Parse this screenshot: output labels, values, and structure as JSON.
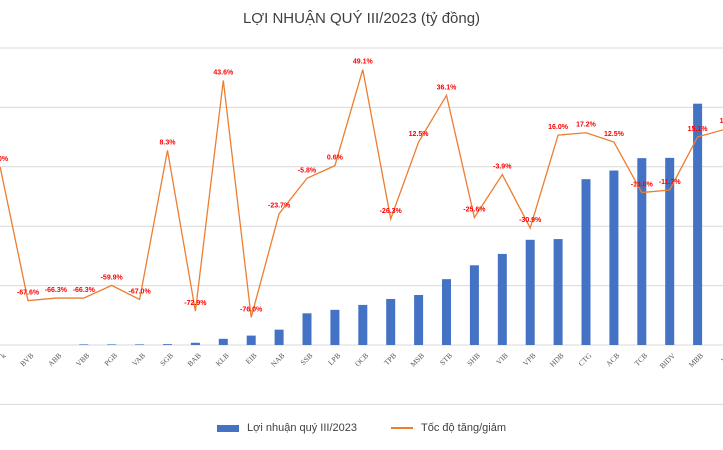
{
  "chart_data": {
    "type": "bar",
    "title": "LỢI NHUẬN QUÝ III/2023 (tỷ đồng)",
    "categories": [
      "BVB",
      "ABB",
      "VBB",
      "PGB",
      "VAB",
      "SGB",
      "BAB",
      "KLB",
      "EIB",
      "NAB",
      "SSB",
      "LPB",
      "OCB",
      "TPB",
      "MSB",
      "STB",
      "SHB",
      "VIB",
      "VPB",
      "HDB",
      "CTG",
      "ACB",
      "TCB",
      "BIDV",
      "MBB"
    ],
    "series": [
      {
        "name": "Lợi nhuận quý III/2023",
        "values": [
          0,
          0,
          25,
          25,
          25,
          35,
          90,
          250,
          380,
          620,
          1280,
          1420,
          1620,
          1860,
          2020,
          2660,
          3220,
          3680,
          4250,
          4280,
          6700,
          7050,
          7550,
          7560,
          9750
        ]
      },
      {
        "name": "Tốc độ tăng/giảm",
        "values": [
          -67.6,
          -66.3,
          -66.3,
          -59.9,
          -67.0,
          8.3,
          -72.9,
          43.6,
          -76.0,
          -23.7,
          -5.8,
          0.6,
          49.1,
          -26.3,
          12.5,
          36.1,
          -25.6,
          -3.9,
          -30.9,
          16.0,
          17.2,
          12.5,
          -13.0,
          -11.7,
          15.1
        ],
        "labels": [
          "-67.6%",
          "-66.3%",
          "-66.3%",
          "-59.9%",
          "-67.0%",
          "8.3%",
          "-72.9%",
          "43.6%",
          "-76.0%",
          "-23.7%",
          "-5.8%",
          "0.6%",
          "49.1%",
          "-26.3%",
          "12.5%",
          "36.1%",
          "-25.6%",
          "-3.9%",
          "-30.9%",
          "16.0%",
          "17.2%",
          "12.5%",
          "-13.0%",
          "-11.7%",
          "15.1%"
        ]
      }
    ],
    "partial_left": {
      "tick": "k",
      "growth_label": ".0%",
      "growth_value": 0.0
    },
    "partial_right": {
      "tick": "VC",
      "growth_label": "19",
      "growth_value": 19.0
    },
    "y_bar_range": [
      0,
      12000
    ],
    "y_growth_range": [
      -90,
      60
    ],
    "grid": true,
    "legend_position": "bottom",
    "colors": {
      "bar": "#4472c4",
      "line": "#ed7d31",
      "label": "#ff0000",
      "grid": "#d9d9d9",
      "tick": "#595959"
    }
  },
  "legend": {
    "bar_label": "Lợi nhuận quý III/2023",
    "line_label": "Tốc độ tăng/giảm"
  }
}
